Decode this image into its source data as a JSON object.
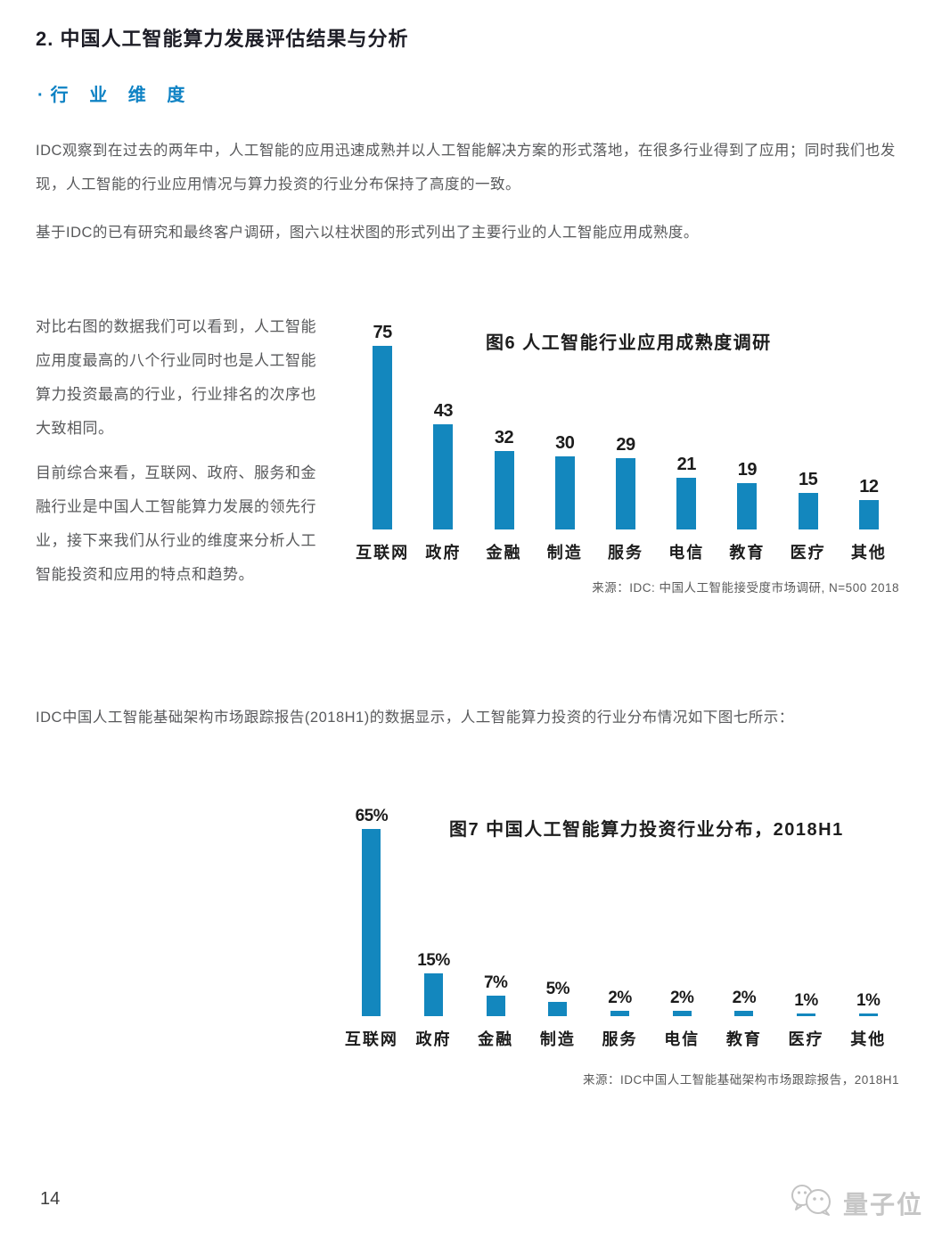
{
  "page": {
    "heading": "2. 中国人工智能算力发展评估结果与分析",
    "subheading_bullet": "·",
    "subheading": "行 业 维 度",
    "paragraphs": {
      "p1": "IDC观察到在过去的两年中，人工智能的应用迅速成熟并以人工智能解决方案的形式落地，在很多行业得到了应用；同时我们也发现，人工智能的行业应用情况与算力投资的行业分布保持了高度的一致。",
      "p2": "基于IDC的已有研究和最终客户调研，图六以柱状图的形式列出了主要行业的人工智能应用成熟度。",
      "p3": "对比右图的数据我们可以看到，人工智能应用度最高的八个行业同时也是人工智能算力投资最高的行业，行业排名的次序也大致相同。",
      "p4": "目前综合来看，互联网、政府、服务和金融行业是中国人工智能算力发展的领先行业，接下来我们从行业的维度来分析人工智能投资和应用的特点和趋势。",
      "p5": "IDC中国人工智能基础架构市场跟踪报告(2018H1)的数据显示，人工智能算力投资的行业分布情况如下图七所示："
    },
    "page_number": "14",
    "watermark_text": "量子位"
  },
  "colors": {
    "accent_blue": "#0e82c4",
    "bar_blue": "#1387be",
    "body_text": "#58595b",
    "heading_text": "#1d1d26",
    "watermark_gray": "#c6c6c6"
  },
  "chart_data": [
    {
      "type": "bar",
      "title": "图6 人工智能行业应用成熟度调研",
      "categories": [
        "互联网",
        "政府",
        "金融",
        "制造",
        "服务",
        "电信",
        "教育",
        "医疗",
        "其他"
      ],
      "values": [
        75,
        43,
        32,
        30,
        29,
        21,
        19,
        15,
        12
      ],
      "value_labels": [
        "75",
        "43",
        "32",
        "30",
        "29",
        "21",
        "19",
        "15",
        "12"
      ],
      "ylim": [
        0,
        80
      ],
      "grid": false,
      "legend": "none",
      "source": "来源：IDC: 中国人工智能接受度市场调研, N=500  2018"
    },
    {
      "type": "bar",
      "title": "图7 中国人工智能算力投资行业分布，2018H1",
      "categories": [
        "互联网",
        "政府",
        "金融",
        "制造",
        "服务",
        "电信",
        "教育",
        "医疗",
        "其他"
      ],
      "values": [
        65,
        15,
        7,
        5,
        2,
        2,
        2,
        1,
        1
      ],
      "value_labels": [
        "65%",
        "15%",
        "7%",
        "5%",
        "2%",
        "2%",
        "2%",
        "1%",
        "1%"
      ],
      "ylim": [
        0,
        70
      ],
      "grid": false,
      "legend": "none",
      "source": "来源：IDC中国人工智能基础架构市场跟踪报告，2018H1"
    }
  ]
}
